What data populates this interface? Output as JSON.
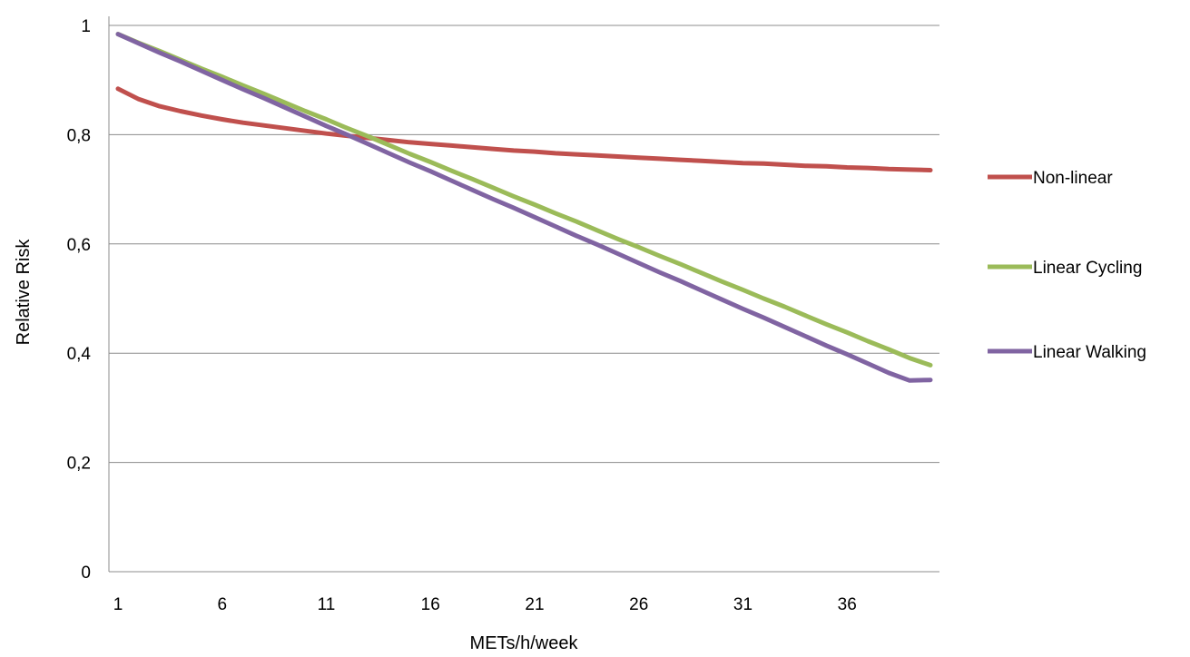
{
  "chart_data": {
    "type": "line",
    "title": "",
    "xlabel": "METs/h/week",
    "ylabel": "Relative  Risk",
    "x": [
      1,
      2,
      3,
      4,
      5,
      6,
      7,
      8,
      9,
      10,
      11,
      12,
      13,
      14,
      15,
      16,
      17,
      18,
      19,
      20,
      21,
      22,
      23,
      24,
      25,
      26,
      27,
      28,
      29,
      30,
      31,
      32,
      33,
      34,
      35,
      36,
      37,
      38,
      39,
      40
    ],
    "xlim": [
      1,
      40
    ],
    "x_ticks": [
      1,
      6,
      11,
      16,
      21,
      26,
      31,
      36
    ],
    "x_tick_labels": [
      "1",
      "6",
      "11",
      "16",
      "21",
      "26",
      "31",
      "36"
    ],
    "ylim": [
      0,
      1
    ],
    "y_ticks": [
      0,
      0.2,
      0.4,
      0.6,
      0.8,
      1
    ],
    "y_tick_labels": [
      "0",
      "0,2",
      "0,4",
      "0,6",
      "0,8",
      "1"
    ],
    "grid": "horizontal",
    "legend_position": "right",
    "series": [
      {
        "name": "Non-linear",
        "color": "#C0504D",
        "values": [
          0.884,
          0.865,
          0.852,
          0.843,
          0.835,
          0.828,
          0.822,
          0.817,
          0.812,
          0.807,
          0.802,
          0.798,
          0.794,
          0.79,
          0.786,
          0.783,
          0.78,
          0.777,
          0.774,
          0.771,
          0.769,
          0.766,
          0.764,
          0.762,
          0.76,
          0.758,
          0.756,
          0.754,
          0.752,
          0.75,
          0.748,
          0.747,
          0.745,
          0.743,
          0.742,
          0.74,
          0.739,
          0.737,
          0.736,
          0.735
        ]
      },
      {
        "name": "Linear Cycling",
        "color": "#9BBB59",
        "values": [
          0.984,
          0.968,
          0.953,
          0.937,
          0.921,
          0.906,
          0.89,
          0.875,
          0.859,
          0.843,
          0.828,
          0.812,
          0.797,
          0.781,
          0.765,
          0.75,
          0.734,
          0.719,
          0.703,
          0.687,
          0.672,
          0.656,
          0.641,
          0.625,
          0.609,
          0.594,
          0.578,
          0.563,
          0.547,
          0.531,
          0.516,
          0.5,
          0.485,
          0.469,
          0.453,
          0.438,
          0.422,
          0.407,
          0.391,
          0.378
        ]
      },
      {
        "name": "Linear Walking",
        "color": "#8064A2",
        "values": [
          0.984,
          0.967,
          0.95,
          0.934,
          0.917,
          0.9,
          0.883,
          0.867,
          0.85,
          0.833,
          0.816,
          0.8,
          0.783,
          0.766,
          0.749,
          0.733,
          0.716,
          0.699,
          0.682,
          0.666,
          0.649,
          0.632,
          0.615,
          0.599,
          0.582,
          0.565,
          0.548,
          0.532,
          0.515,
          0.498,
          0.481,
          0.465,
          0.448,
          0.431,
          0.414,
          0.398,
          0.381,
          0.364,
          0.35,
          0.351
        ]
      }
    ]
  }
}
